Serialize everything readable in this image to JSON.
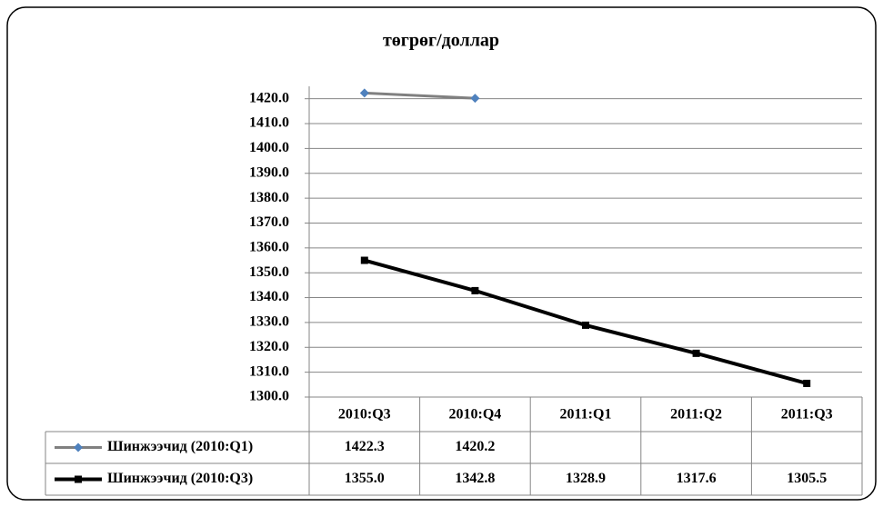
{
  "chart_data": {
    "type": "line",
    "title": "төгрөг/доллар",
    "categories": [
      "2010:Q3",
      "2010:Q4",
      "2011:Q1",
      "2011:Q2",
      "2011:Q3"
    ],
    "series": [
      {
        "name": "Шинжээчид (2010:Q1)",
        "color": "#808080",
        "marker": "diamond",
        "marker_color": "#4f81bd",
        "values": [
          1422.3,
          1420.2,
          null,
          null,
          null
        ],
        "value_labels": [
          "1422.3",
          "1420.2",
          null,
          null,
          null
        ]
      },
      {
        "name": "Шинжээчид (2010:Q3)",
        "color": "#000000",
        "marker": "square",
        "marker_color": "#000000",
        "values": [
          1355.0,
          1342.8,
          1328.9,
          1317.6,
          1305.5
        ],
        "value_labels": [
          "1355.0",
          "1342.8",
          "1328.9",
          "1317.6",
          "1305.5"
        ]
      }
    ],
    "ylim": [
      1300,
      1425
    ],
    "yticks": [
      {
        "value": 1300,
        "label": "1300.0"
      },
      {
        "value": 1310,
        "label": "1310.0"
      },
      {
        "value": 1320,
        "label": "1320.0"
      },
      {
        "value": 1330,
        "label": "1330.0"
      },
      {
        "value": 1340,
        "label": "1340.0"
      },
      {
        "value": 1350,
        "label": "1350.0"
      },
      {
        "value": 1360,
        "label": "1360.0"
      },
      {
        "value": 1370,
        "label": "1370.0"
      },
      {
        "value": 1380,
        "label": "1380.0"
      },
      {
        "value": 1390,
        "label": "1390.0"
      },
      {
        "value": 1400,
        "label": "1400.0"
      },
      {
        "value": 1410,
        "label": "1410.0"
      },
      {
        "value": 1420,
        "label": "1420.0"
      }
    ],
    "grid": true
  }
}
